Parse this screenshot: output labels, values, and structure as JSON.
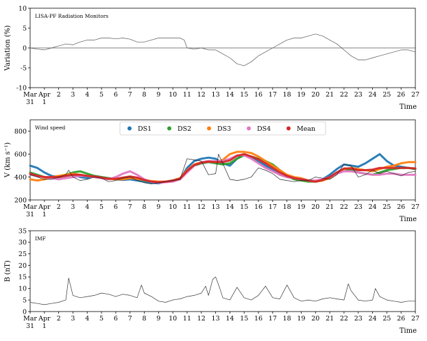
{
  "chart_data": [
    {
      "type": "line",
      "annotation": "LISA-PF Radiation Monitors",
      "ylabel": "Variation (%)",
      "xlabel": "Time",
      "ylim": [
        -10,
        10
      ],
      "yticks": [
        -10,
        -5,
        0,
        5,
        10
      ],
      "zero_line": true,
      "series": [
        {
          "color": "#555555",
          "x": [
            0,
            0.5,
            1,
            1.5,
            2,
            2.5,
            3,
            3.5,
            4,
            4.5,
            5,
            5.5,
            6,
            6.5,
            7,
            7.5,
            8,
            8.5,
            9,
            9.5,
            10,
            10.5,
            10.8,
            11,
            11.5,
            12,
            12.5,
            13,
            13.5,
            14,
            14.5,
            15,
            15.5,
            16,
            16.5,
            17,
            17.5,
            18,
            18.5,
            19,
            19.5,
            20,
            20.5,
            21,
            21.5,
            22,
            22.5,
            23,
            23.5,
            24,
            24.5,
            25,
            25.5,
            26,
            26.5,
            27
          ],
          "y": [
            0,
            -0.3,
            -0.5,
            0,
            0.5,
            1,
            0.8,
            1.5,
            2,
            2,
            2.5,
            2.5,
            2.3,
            2.5,
            2.2,
            1.5,
            1.5,
            2,
            2.5,
            2.5,
            2.5,
            2.5,
            2,
            0,
            -0.3,
            0,
            -0.5,
            -0.5,
            -1.5,
            -2.5,
            -4,
            -4.5,
            -3.5,
            -2,
            -1,
            0,
            1,
            2,
            2.5,
            2.5,
            3,
            3.5,
            3,
            2,
            1,
            -0.5,
            -2,
            -3,
            -3,
            -2.5,
            -2,
            -1.5,
            -1,
            -0.5,
            -0.5,
            -1
          ]
        }
      ]
    },
    {
      "type": "line",
      "annotation": "Wind speed",
      "ylabel": "V (km s⁻¹)",
      "xlabel": "Time",
      "ylim": [
        200,
        900
      ],
      "yticks": [
        200,
        400,
        600,
        800
      ],
      "legend": [
        "DS1",
        "DS2",
        "DS3",
        "DS4",
        "Mean"
      ],
      "legend_position": "top-center",
      "series": [
        {
          "name": "DS1",
          "color": "#1f77b4",
          "x": [
            0,
            0.5,
            1,
            1.5,
            2,
            2.5,
            3,
            3.5,
            4,
            4.5,
            5,
            5.5,
            6,
            6.5,
            7,
            7.5,
            8,
            8.5,
            9,
            9.5,
            10,
            10.5,
            11,
            11.5,
            12,
            12.5,
            13,
            13.5,
            14,
            14.5,
            15,
            15.5,
            16,
            16.5,
            17,
            17.5,
            18,
            18.5,
            19,
            19.5,
            20,
            20.5,
            21,
            21.5,
            22,
            22.5,
            23,
            23.5,
            24,
            24.5,
            25,
            25.5,
            26,
            26.5,
            27
          ],
          "y": [
            500,
            480,
            440,
            410,
            400,
            410,
            420,
            400,
            390,
            410,
            400,
            390,
            380,
            375,
            380,
            370,
            360,
            350,
            345,
            360,
            370,
            380,
            480,
            540,
            560,
            570,
            560,
            520,
            500,
            560,
            600,
            570,
            540,
            500,
            460,
            420,
            400,
            390,
            380,
            370,
            360,
            380,
            420,
            470,
            510,
            500,
            490,
            520,
            560,
            600,
            540,
            500,
            490,
            480,
            470
          ]
        },
        {
          "name": "DS2",
          "color": "#2ca02c",
          "x": [
            0,
            0.5,
            1,
            1.5,
            2,
            2.5,
            3,
            3.5,
            4,
            4.5,
            5,
            5.5,
            6,
            6.5,
            7,
            7.5,
            8,
            8.5,
            9,
            9.5,
            10,
            10.5,
            11,
            11.5,
            12,
            12.5,
            13,
            13.5,
            14,
            14.5,
            15,
            15.5,
            16,
            16.5,
            17,
            17.5,
            18,
            18.5,
            19,
            19.5,
            20,
            20.5,
            21,
            21.5,
            22,
            22.5,
            23,
            23.5,
            24,
            24.5,
            25,
            25.5,
            26,
            26.5,
            27
          ],
          "y": [
            440,
            420,
            400,
            390,
            400,
            420,
            440,
            450,
            430,
            410,
            400,
            390,
            380,
            390,
            400,
            390,
            370,
            360,
            355,
            360,
            370,
            390,
            450,
            500,
            520,
            530,
            520,
            510,
            520,
            560,
            590,
            580,
            560,
            540,
            510,
            460,
            410,
            380,
            370,
            360,
            360,
            370,
            400,
            440,
            470,
            460,
            440,
            430,
            420,
            440,
            460,
            470,
            480,
            480,
            470
          ]
        },
        {
          "name": "DS3",
          "color": "#ff7f0e",
          "x": [
            0,
            0.5,
            1,
            1.5,
            2,
            2.5,
            3,
            3.5,
            4,
            4.5,
            5,
            5.5,
            6,
            6.5,
            7,
            7.5,
            8,
            8.5,
            9,
            9.5,
            10,
            10.5,
            11,
            11.5,
            12,
            12.5,
            13,
            13.5,
            14,
            14.5,
            15,
            15.5,
            16,
            16.5,
            17,
            17.5,
            18,
            18.5,
            19,
            19.5,
            20,
            20.5,
            21,
            21.5,
            22,
            22.5,
            23,
            23.5,
            24,
            24.5,
            25,
            25.5,
            26,
            26.5,
            27
          ],
          "y": [
            380,
            370,
            380,
            400,
            410,
            420,
            430,
            420,
            410,
            400,
            390,
            385,
            380,
            380,
            390,
            385,
            375,
            365,
            360,
            360,
            370,
            390,
            460,
            510,
            530,
            540,
            530,
            550,
            600,
            620,
            620,
            610,
            580,
            540,
            500,
            460,
            420,
            400,
            390,
            370,
            360,
            370,
            390,
            430,
            470,
            480,
            470,
            460,
            450,
            470,
            490,
            500,
            520,
            530,
            530
          ]
        },
        {
          "name": "DS4",
          "color": "#e377c2",
          "x": [
            0,
            0.5,
            1,
            1.5,
            2,
            2.5,
            3,
            3.5,
            4,
            4.5,
            5,
            5.5,
            6,
            6.5,
            7,
            7.5,
            8,
            8.5,
            9,
            9.5,
            10,
            10.5,
            11,
            11.5,
            12,
            12.5,
            13,
            13.5,
            14,
            14.5,
            15,
            15.5,
            16,
            16.5,
            17,
            17.5,
            18,
            18.5,
            19,
            19.5,
            20,
            20.5,
            21,
            21.5,
            22,
            22.5,
            23,
            23.5,
            24,
            24.5,
            25,
            25.5,
            26,
            26.5,
            27
          ],
          "y": [
            420,
            410,
            400,
            390,
            380,
            390,
            400,
            410,
            410,
            400,
            390,
            380,
            400,
            430,
            450,
            420,
            380,
            360,
            350,
            355,
            360,
            380,
            440,
            500,
            530,
            540,
            540,
            540,
            560,
            590,
            590,
            560,
            520,
            480,
            450,
            420,
            400,
            390,
            380,
            370,
            370,
            380,
            400,
            430,
            450,
            450,
            440,
            430,
            420,
            420,
            430,
            430,
            420,
            420,
            420
          ]
        },
        {
          "name": "Mean",
          "color": "#d62728",
          "x": [
            0,
            0.5,
            1,
            1.5,
            2,
            2.5,
            3,
            3.5,
            4,
            4.5,
            5,
            5.5,
            6,
            6.5,
            7,
            7.5,
            8,
            8.5,
            9,
            9.5,
            10,
            10.5,
            11,
            11.5,
            12,
            12.5,
            13,
            13.5,
            14,
            14.5,
            15,
            15.5,
            16,
            16.5,
            17,
            17.5,
            18,
            18.5,
            19,
            19.5,
            20,
            20.5,
            21,
            21.5,
            22,
            22.5,
            23,
            23.5,
            24,
            24.5,
            25,
            25.5,
            26,
            26.5,
            27
          ],
          "y": [
            430,
            410,
            400,
            400,
            400,
            410,
            420,
            420,
            410,
            405,
            395,
            385,
            385,
            395,
            405,
            395,
            375,
            360,
            355,
            360,
            370,
            385,
            455,
            505,
            525,
            535,
            530,
            530,
            545,
            585,
            600,
            580,
            555,
            520,
            480,
            440,
            410,
            390,
            380,
            370,
            360,
            375,
            400,
            440,
            475,
            475,
            460,
            460,
            465,
            480,
            480,
            480,
            480,
            480,
            475
          ]
        },
        {
          "color": "#222222",
          "x": [
            0,
            0.5,
            1,
            1.5,
            2,
            2.5,
            2.7,
            3,
            3.5,
            4,
            4.5,
            5,
            5.5,
            6,
            6.5,
            7,
            7.5,
            8,
            8.5,
            9,
            9.5,
            10,
            10.5,
            11,
            11.5,
            12,
            12.5,
            13,
            13.2,
            13.5,
            14,
            14.5,
            15,
            15.5,
            16,
            16.5,
            17,
            17.5,
            18,
            18.5,
            19,
            19.5,
            20,
            20.5,
            21,
            21.5,
            22,
            22.5,
            23,
            23.5,
            24,
            24.5,
            25,
            25.5,
            26,
            26.5,
            27
          ],
          "y": [
            420,
            400,
            380,
            380,
            400,
            420,
            460,
            400,
            370,
            380,
            400,
            390,
            360,
            370,
            390,
            400,
            370,
            350,
            340,
            350,
            360,
            370,
            380,
            560,
            550,
            540,
            420,
            430,
            600,
            520,
            380,
            370,
            380,
            400,
            480,
            460,
            430,
            380,
            370,
            360,
            370,
            370,
            400,
            390,
            380,
            420,
            510,
            500,
            400,
            420,
            460,
            430,
            450,
            430,
            410,
            440,
            450
          ]
        }
      ]
    },
    {
      "type": "line",
      "annotation": "IMF",
      "ylabel": "B (nT)",
      "xlabel": "Time",
      "ylim": [
        0,
        35
      ],
      "yticks": [
        0,
        5,
        10,
        15,
        20,
        25,
        30,
        35
      ],
      "series": [
        {
          "color": "#333333",
          "x": [
            0,
            0.5,
            1,
            1.5,
            2,
            2.5,
            2.7,
            3,
            3.5,
            4,
            4.5,
            5,
            5.5,
            6,
            6.5,
            7,
            7.5,
            7.8,
            8,
            8.5,
            9,
            9.5,
            10,
            10.5,
            11,
            11.5,
            12,
            12.3,
            12.5,
            12.8,
            13,
            13.3,
            13.5,
            14,
            14.5,
            15,
            15.5,
            16,
            16.5,
            17,
            17.5,
            18,
            18.5,
            19,
            19.5,
            20,
            20.5,
            21,
            21.5,
            22,
            22.3,
            22.5,
            23,
            23.5,
            24,
            24.2,
            24.5,
            25,
            25.5,
            26,
            26.5,
            27
          ],
          "y": [
            4,
            3.5,
            3,
            3.5,
            4,
            5,
            14.5,
            7,
            6,
            6.5,
            7,
            8,
            7.5,
            6.5,
            7.5,
            7,
            6,
            11.5,
            8,
            6.5,
            4.5,
            4,
            5,
            5.5,
            6.5,
            7,
            8,
            11,
            7,
            14,
            15,
            10,
            6,
            5,
            10.5,
            6,
            5,
            7,
            11,
            6,
            5.5,
            11.5,
            6,
            4.5,
            5,
            4.5,
            5.5,
            6,
            5.5,
            5,
            12,
            9,
            5,
            4.5,
            5,
            10,
            6.5,
            5,
            4.5,
            4,
            4.5,
            4.5
          ]
        }
      ]
    }
  ],
  "x_axis": {
    "ticks": [
      {
        "x": 0,
        "label": "Mar"
      },
      {
        "x": 1,
        "label": "Apr"
      },
      {
        "x": 2,
        "label": "2"
      },
      {
        "x": 3,
        "label": "3"
      },
      {
        "x": 4,
        "label": "4"
      },
      {
        "x": 5,
        "label": "5"
      },
      {
        "x": 6,
        "label": "6"
      },
      {
        "x": 7,
        "label": "7"
      },
      {
        "x": 8,
        "label": "8"
      },
      {
        "x": 9,
        "label": "9"
      },
      {
        "x": 10,
        "label": "10"
      },
      {
        "x": 11,
        "label": "11"
      },
      {
        "x": 12,
        "label": "12"
      },
      {
        "x": 13,
        "label": "13"
      },
      {
        "x": 14,
        "label": "14"
      },
      {
        "x": 15,
        "label": "15"
      },
      {
        "x": 16,
        "label": "16"
      },
      {
        "x": 17,
        "label": "17"
      },
      {
        "x": 18,
        "label": "18"
      },
      {
        "x": 19,
        "label": "19"
      },
      {
        "x": 20,
        "label": "20"
      },
      {
        "x": 21,
        "label": "21"
      },
      {
        "x": 22,
        "label": "22"
      },
      {
        "x": 23,
        "label": "23"
      },
      {
        "x": 24,
        "label": "24"
      },
      {
        "x": 25,
        "label": "25"
      },
      {
        "x": 26,
        "label": "26"
      },
      {
        "x": 27,
        "label": "27"
      }
    ],
    "sublabels": [
      {
        "x": 0,
        "label": "31"
      },
      {
        "x": 1,
        "label": "1"
      }
    ],
    "xlim": [
      0,
      27
    ]
  }
}
